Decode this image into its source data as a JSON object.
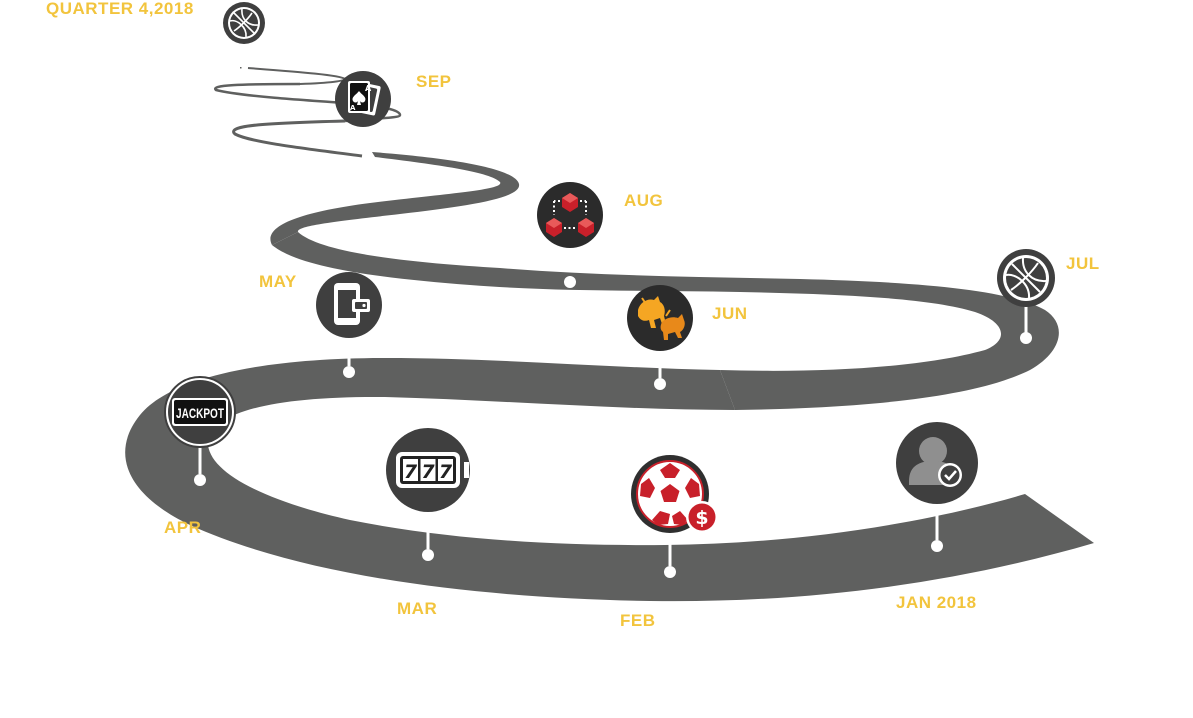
{
  "colors": {
    "road": "#5f605f",
    "road_dark": "#4a4a4a",
    "label": "#f2c43d",
    "icon_bg": "#3f3f3f",
    "accent_red": "#c8202a",
    "accent_orange": "#f5a623",
    "white": "#ffffff"
  },
  "milestones": {
    "jan": {
      "label": "JAN 2018",
      "icon": "user-check-icon"
    },
    "feb": {
      "label": "FEB",
      "icon": "soccer-ball-dollar-icon"
    },
    "mar": {
      "label": "MAR",
      "icon": "slot-machine-777-icon"
    },
    "apr": {
      "label": "APR",
      "icon": "jackpot-icon"
    },
    "may": {
      "label": "MAY",
      "icon": "mobile-wallet-icon"
    },
    "jun": {
      "label": "JUN",
      "icon": "bull-bear-icon"
    },
    "jul": {
      "label": "JUL",
      "icon": "basketball-icon"
    },
    "aug": {
      "label": "AUG",
      "icon": "blockchain-icon"
    },
    "sep": {
      "label": "SEP",
      "icon": "playing-cards-icon"
    },
    "q4": {
      "label": "QUARTER 4,2018",
      "icon": "basketball-icon"
    }
  },
  "icon_text": {
    "jackpot": "JACKPOT",
    "slot_digit": "7",
    "card_letter": "A",
    "dollar": "$"
  }
}
